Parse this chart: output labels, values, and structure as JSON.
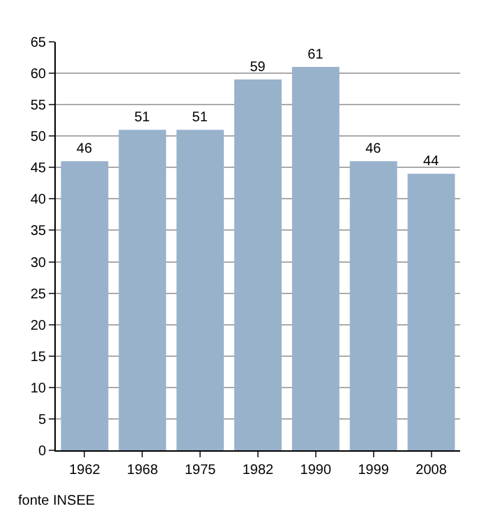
{
  "chart_data": {
    "type": "bar",
    "categories": [
      "1962",
      "1968",
      "1975",
      "1982",
      "1990",
      "1999",
      "2008"
    ],
    "values": [
      46,
      51,
      51,
      59,
      61,
      46,
      44
    ],
    "color": "#98b2cc",
    "ylim": [
      0,
      65
    ],
    "yticks": [
      0,
      5,
      10,
      15,
      20,
      25,
      30,
      35,
      40,
      45,
      50,
      55,
      60,
      65
    ],
    "grid": "y",
    "data_labels": true,
    "annotations": [
      "fonte INSEE"
    ]
  }
}
